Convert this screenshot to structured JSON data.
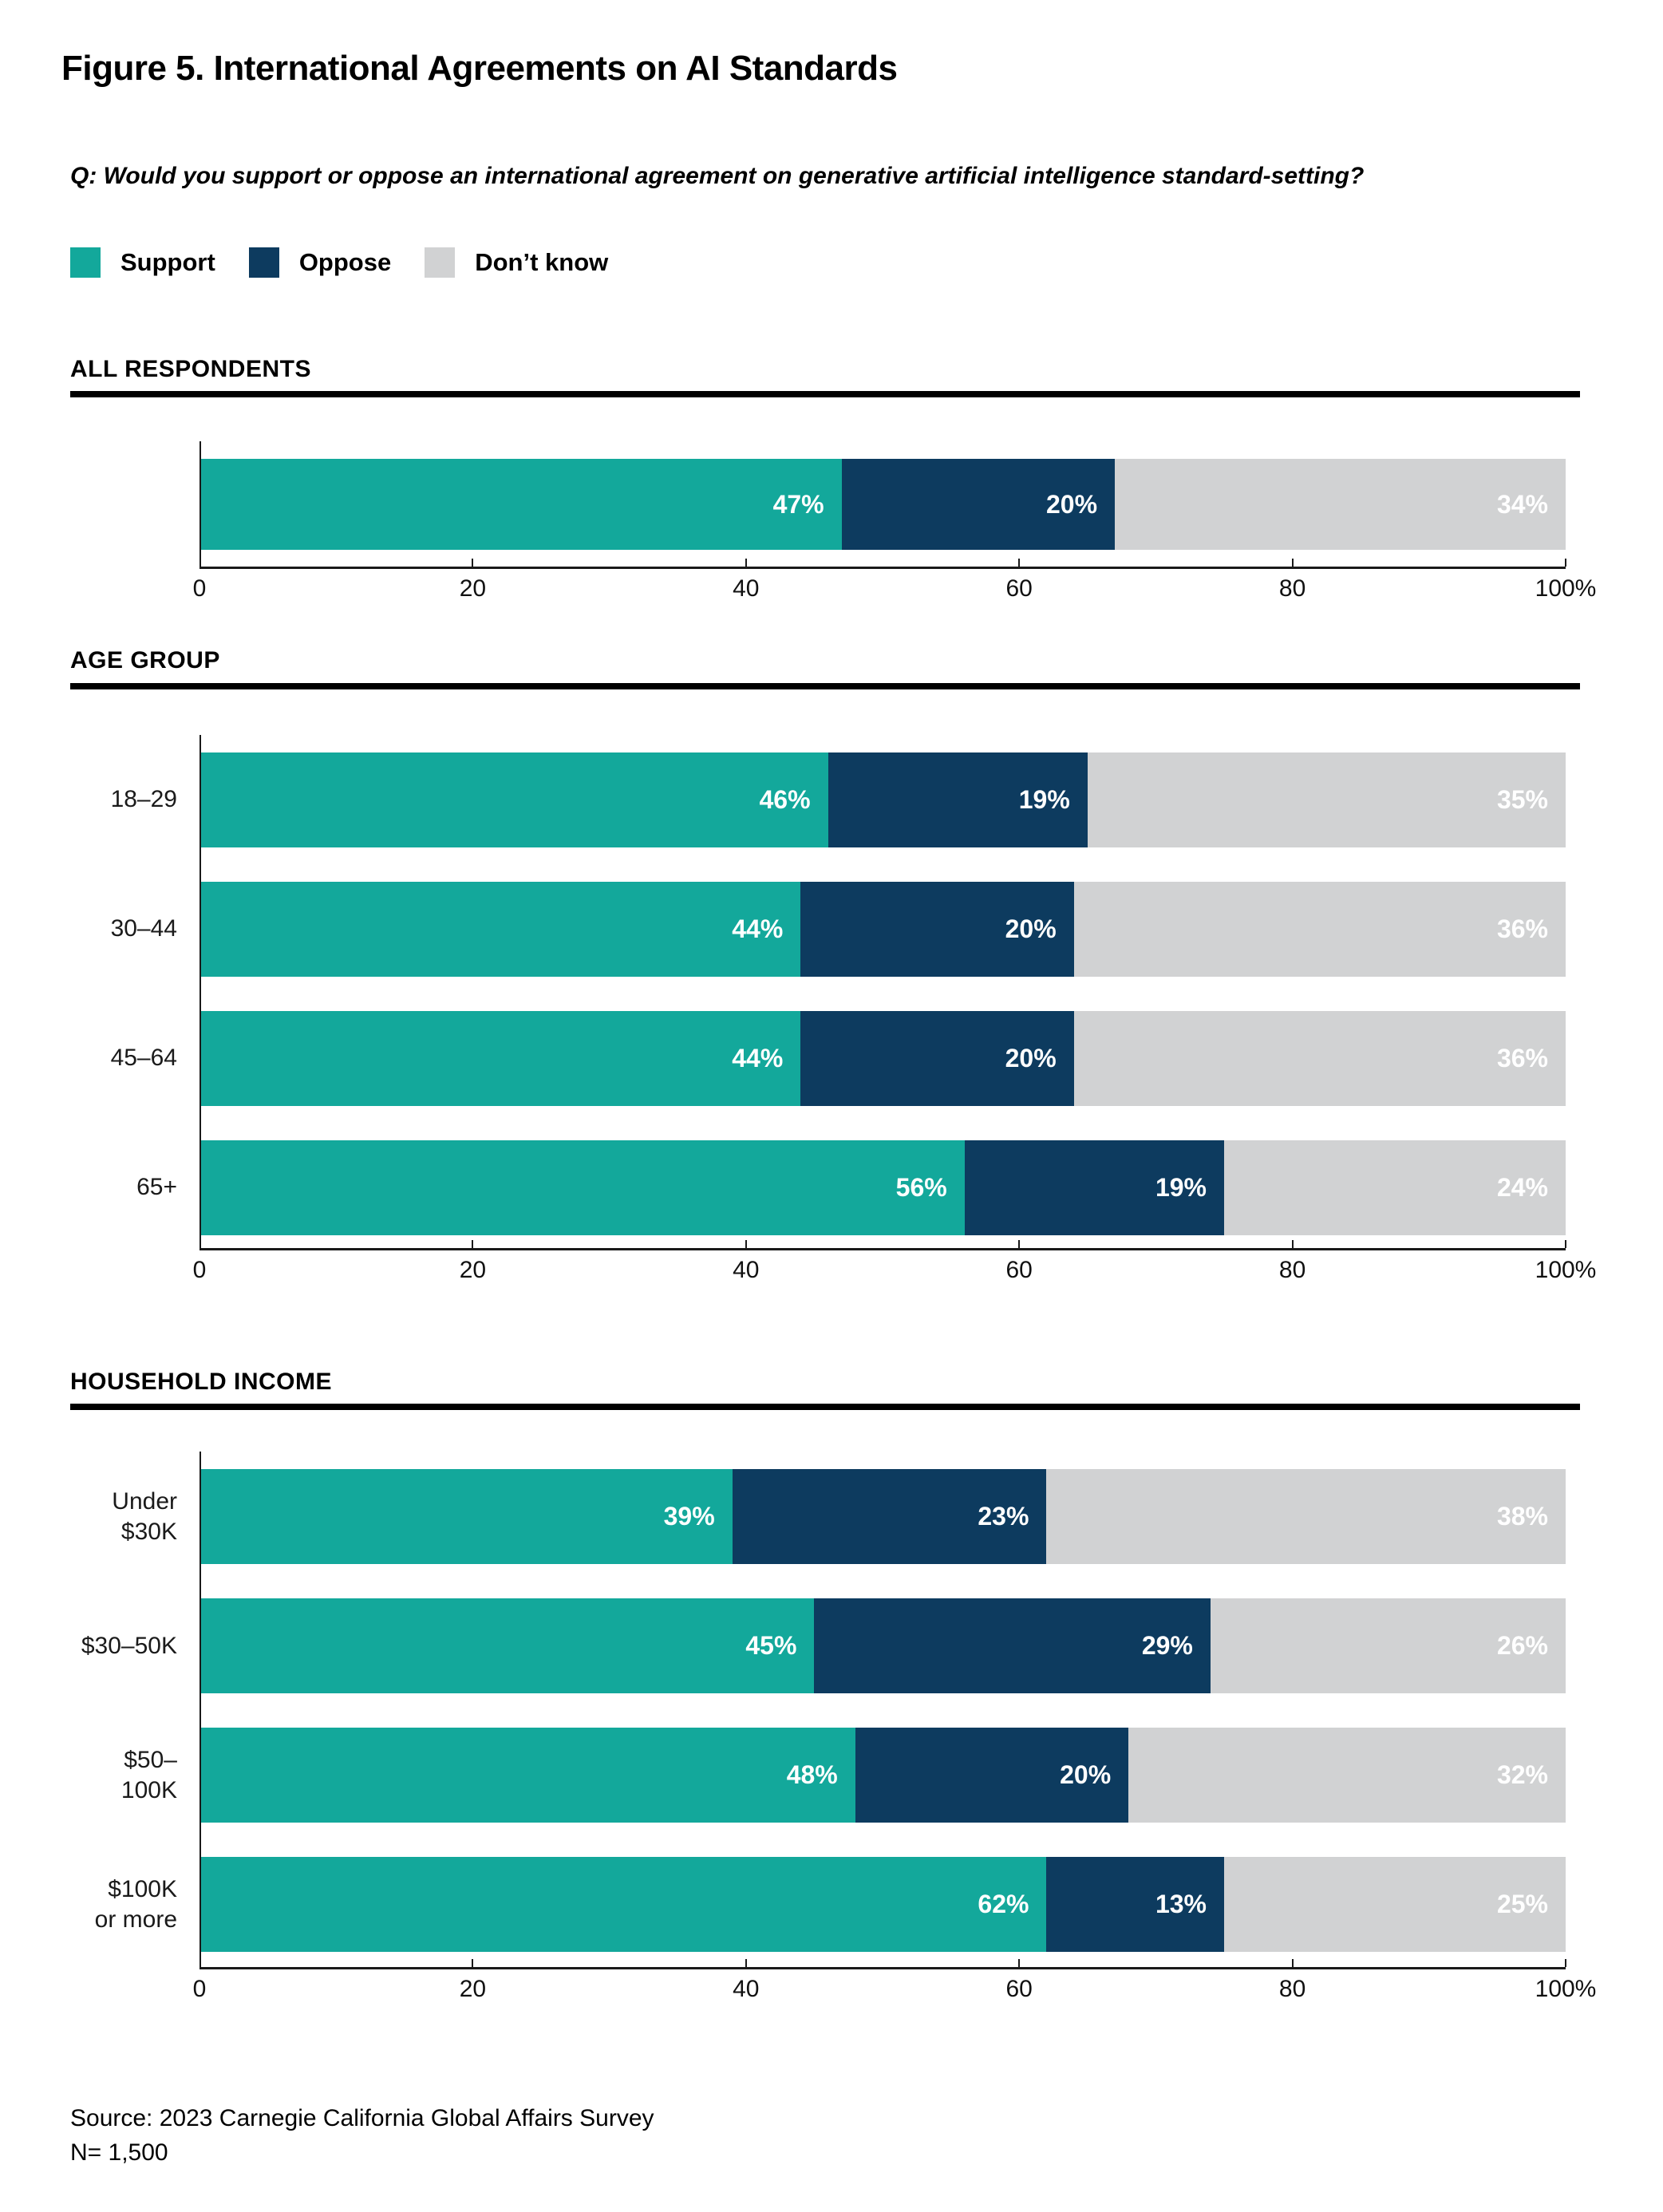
{
  "figure": {
    "title": "Figure 5. International Agreements on AI Standards",
    "question": "Q: Would you support or oppose an international agreement on generative artificial intelligence standard-setting?"
  },
  "colors": {
    "support": "#13a89b",
    "oppose": "#0d3b5f",
    "dont_know": "#d1d2d3",
    "axis": "#1a1a1a",
    "rule": "#000000",
    "bar_label_text": "#ffffff"
  },
  "legend": [
    {
      "label": "Support",
      "color": "#13a89b"
    },
    {
      "label": "Oppose",
      "color": "#0d3b5f"
    },
    {
      "label": "Don’t know",
      "color": "#d1d2d3"
    }
  ],
  "axis": {
    "ticks": [
      {
        "value": 0,
        "label": "0"
      },
      {
        "value": 20,
        "label": "20"
      },
      {
        "value": 40,
        "label": "40"
      },
      {
        "value": 60,
        "label": "60"
      },
      {
        "value": 80,
        "label": "80"
      },
      {
        "value": 100,
        "label": "100%"
      }
    ],
    "xlim": [
      0,
      100
    ]
  },
  "chart_data": [
    {
      "type": "bar",
      "orientation": "horizontal",
      "stacked": true,
      "section": "ALL RESPONDENTS",
      "categories": [
        ""
      ],
      "series": [
        {
          "name": "Support",
          "values": [
            47
          ]
        },
        {
          "name": "Oppose",
          "values": [
            20
          ]
        },
        {
          "name": "Don’t know",
          "values": [
            34
          ]
        }
      ],
      "value_suffix": "%",
      "xlim": [
        0,
        100
      ],
      "grid": false,
      "legend_position": "top"
    },
    {
      "type": "bar",
      "orientation": "horizontal",
      "stacked": true,
      "section": "AGE GROUP",
      "categories": [
        "18–29",
        "30–44",
        "45–64",
        "65+"
      ],
      "series": [
        {
          "name": "Support",
          "values": [
            46,
            44,
            44,
            56
          ]
        },
        {
          "name": "Oppose",
          "values": [
            19,
            20,
            20,
            19
          ]
        },
        {
          "name": "Don’t know",
          "values": [
            35,
            36,
            36,
            24
          ]
        }
      ],
      "value_suffix": "%",
      "xlim": [
        0,
        100
      ],
      "grid": false,
      "legend_position": "top"
    },
    {
      "type": "bar",
      "orientation": "horizontal",
      "stacked": true,
      "section": "HOUSEHOLD INCOME",
      "categories": [
        "Under $30K",
        "$30–50K",
        "$50–100K",
        "$100K\nor more"
      ],
      "series": [
        {
          "name": "Support",
          "values": [
            39,
            45,
            48,
            62
          ]
        },
        {
          "name": "Oppose",
          "values": [
            23,
            29,
            20,
            13
          ]
        },
        {
          "name": "Don’t know",
          "values": [
            38,
            26,
            32,
            25
          ]
        }
      ],
      "value_suffix": "%",
      "xlim": [
        0,
        100
      ],
      "grid": false,
      "legend_position": "top"
    }
  ],
  "source": {
    "line1": "Source: 2023 Carnegie California Global Affairs Survey",
    "line2": "N= 1,500"
  }
}
